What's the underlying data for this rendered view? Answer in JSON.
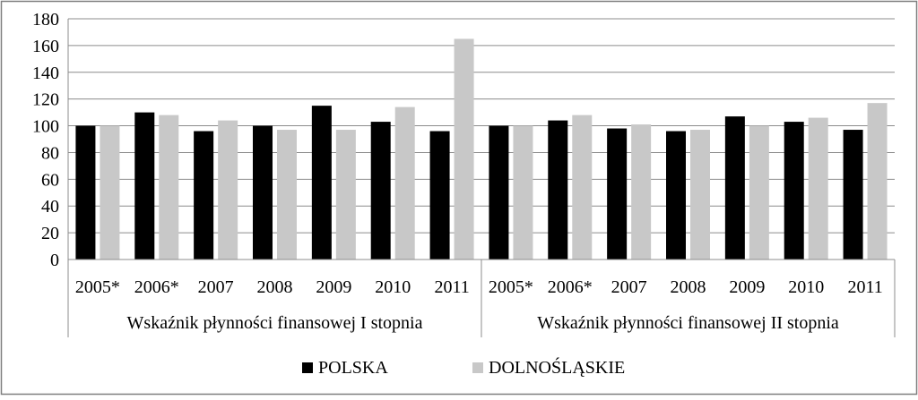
{
  "chart_data": {
    "type": "bar",
    "group_labels": [
      "Wskaźnik płynności finansowej I stopnia",
      "Wskaźnik płynności finansowej II stopnia"
    ],
    "categories": [
      "2005*",
      "2006*",
      "2007",
      "2008",
      "2009",
      "2010",
      "2011"
    ],
    "series": [
      {
        "name": "POLSKA",
        "color": "#000000",
        "values": [
          [
            100,
            110,
            96,
            100,
            115,
            103,
            96
          ],
          [
            100,
            104,
            98,
            96,
            107,
            103,
            97
          ]
        ]
      },
      {
        "name": "DOLNOŚLĄSKIE",
        "color": "#c8c8c8",
        "values": [
          [
            100,
            108,
            104,
            97,
            97,
            114,
            165
          ],
          [
            100,
            108,
            101,
            97,
            100,
            106,
            117
          ]
        ]
      }
    ],
    "ylim": [
      0,
      180
    ],
    "yticks": [
      0,
      20,
      40,
      60,
      80,
      100,
      120,
      140,
      160,
      180
    ],
    "grid": true,
    "legend_position": "bottom"
  }
}
